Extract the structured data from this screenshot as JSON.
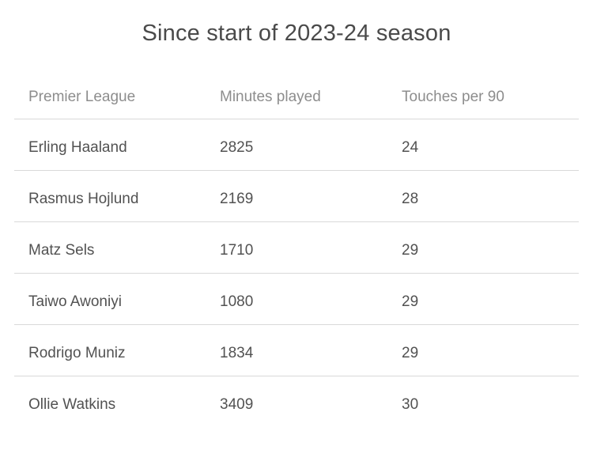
{
  "title": "Since start of 2023-24 season",
  "colors": {
    "background": "#ffffff",
    "title_text": "#4a4a4a",
    "header_text": "#8d8d8d",
    "cell_text": "#525252",
    "divider": "#d9d9d9"
  },
  "table": {
    "columns": [
      "Premier League",
      "Minutes played",
      "Touches per 90"
    ],
    "rows": [
      {
        "player": "Erling Haaland",
        "minutes_played": "2825",
        "touches_per_90": "24"
      },
      {
        "player": "Rasmus Hojlund",
        "minutes_played": "2169",
        "touches_per_90": "28"
      },
      {
        "player": "Matz Sels",
        "minutes_played": "1710",
        "touches_per_90": "29"
      },
      {
        "player": "Taiwo Awoniyi",
        "minutes_played": "1080",
        "touches_per_90": "29"
      },
      {
        "player": "Rodrigo Muniz",
        "minutes_played": "1834",
        "touches_per_90": "29"
      },
      {
        "player": "Ollie Watkins",
        "minutes_played": "3409",
        "touches_per_90": "30"
      }
    ]
  },
  "chart_data": {
    "type": "table",
    "title": "Since start of 2023-24 season",
    "columns": [
      "Premier League",
      "Minutes played",
      "Touches per 90"
    ],
    "rows": [
      [
        "Erling Haaland",
        2825,
        24
      ],
      [
        "Rasmus Hojlund",
        2169,
        28
      ],
      [
        "Matz Sels",
        1710,
        29
      ],
      [
        "Taiwo Awoniyi",
        1080,
        29
      ],
      [
        "Rodrigo Muniz",
        1834,
        29
      ],
      [
        "Ollie Watkins",
        3409,
        30
      ]
    ]
  }
}
